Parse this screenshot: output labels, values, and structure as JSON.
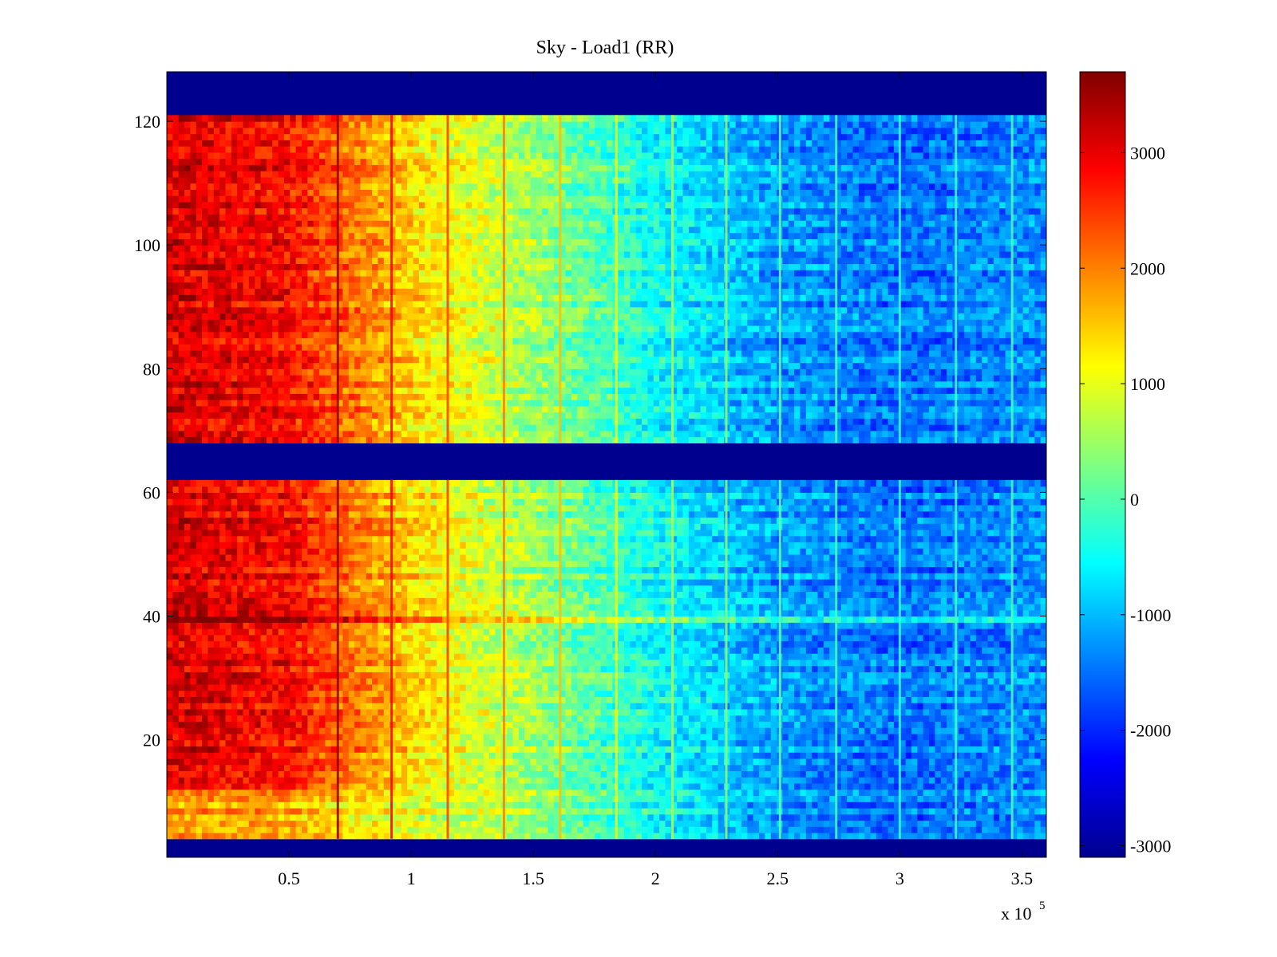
{
  "chart_data": {
    "type": "heatmap",
    "title": "Sky - Load1 (RR)",
    "xlabel": "",
    "ylabel": "",
    "x_multiplier_label": "x 10",
    "x_multiplier_exponent": "5",
    "xlim": [
      0,
      3.6
    ],
    "ylim": [
      1,
      128
    ],
    "x_ticks": [
      0.5,
      1,
      1.5,
      2,
      2.5,
      3,
      3.5
    ],
    "x_tick_labels": [
      "0.5",
      "1",
      "1.5",
      "2",
      "2.5",
      "3",
      "3.5"
    ],
    "y_ticks": [
      20,
      40,
      60,
      80,
      100,
      120
    ],
    "y_tick_labels": [
      "20",
      "40",
      "60",
      "80",
      "100",
      "120"
    ],
    "colormap": "jet",
    "colorbar": {
      "range": [
        -3100,
        3700
      ],
      "ticks": [
        -3000,
        -2000,
        -1000,
        0,
        1000,
        2000,
        3000
      ],
      "tick_labels": [
        "-3000",
        "-2000",
        "-1000",
        "0",
        "1000",
        "2000",
        "3000"
      ]
    },
    "masked_channel_bands": [
      [
        1,
        4
      ],
      [
        62,
        68
      ],
      [
        121,
        128
      ]
    ],
    "active_channel_bands": [
      [
        4,
        62
      ],
      [
        68,
        121
      ]
    ],
    "gradient_along_x": [
      {
        "x": 0.0,
        "value": 3100
      },
      {
        "x": 0.5,
        "value": 2800
      },
      {
        "x": 1.0,
        "value": 1400
      },
      {
        "x": 1.5,
        "value": 500
      },
      {
        "x": 2.0,
        "value": -500
      },
      {
        "x": 2.5,
        "value": -1200
      },
      {
        "x": 3.0,
        "value": -1500
      },
      {
        "x": 3.6,
        "value": -1300
      }
    ],
    "vertical_stripes_x": [
      0.7,
      0.92,
      1.15,
      1.38,
      1.61,
      1.84,
      2.07,
      2.29,
      2.51,
      2.74,
      3.0,
      3.23,
      3.46
    ],
    "bright_row_channel": 39
  }
}
